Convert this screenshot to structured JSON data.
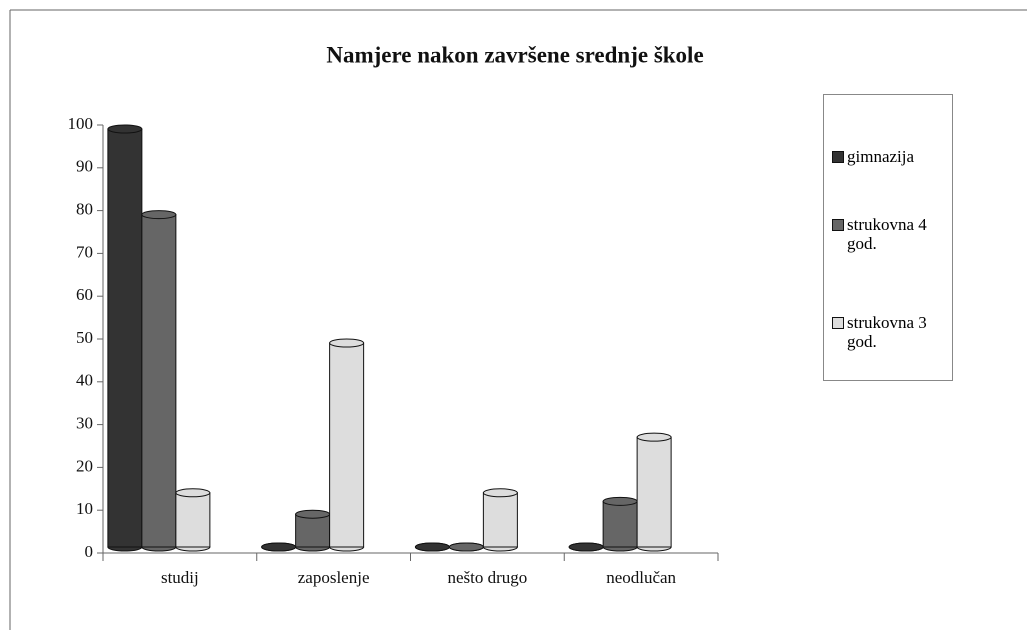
{
  "chart_data": {
    "type": "bar",
    "title": "Namjere nakon završene srednje škole",
    "categories": [
      "studij",
      "zaposlenje",
      "nešto drugo",
      "neodlučan"
    ],
    "series": [
      {
        "name": "gimnazija",
        "color": "#333333",
        "values": [
          100,
          0,
          0,
          1
        ]
      },
      {
        "name": "strukovna 4 god.",
        "color": "#666666",
        "values": [
          80,
          10,
          2,
          13
        ]
      },
      {
        "name": "strukovna 3 god.",
        "color": "#dddddd",
        "values": [
          15,
          50,
          15,
          28
        ]
      }
    ],
    "ylim": [
      0,
      100
    ],
    "yticks": [
      0,
      10,
      20,
      30,
      40,
      50,
      60,
      70,
      80,
      90,
      100
    ],
    "grid": false,
    "legend": "right"
  }
}
